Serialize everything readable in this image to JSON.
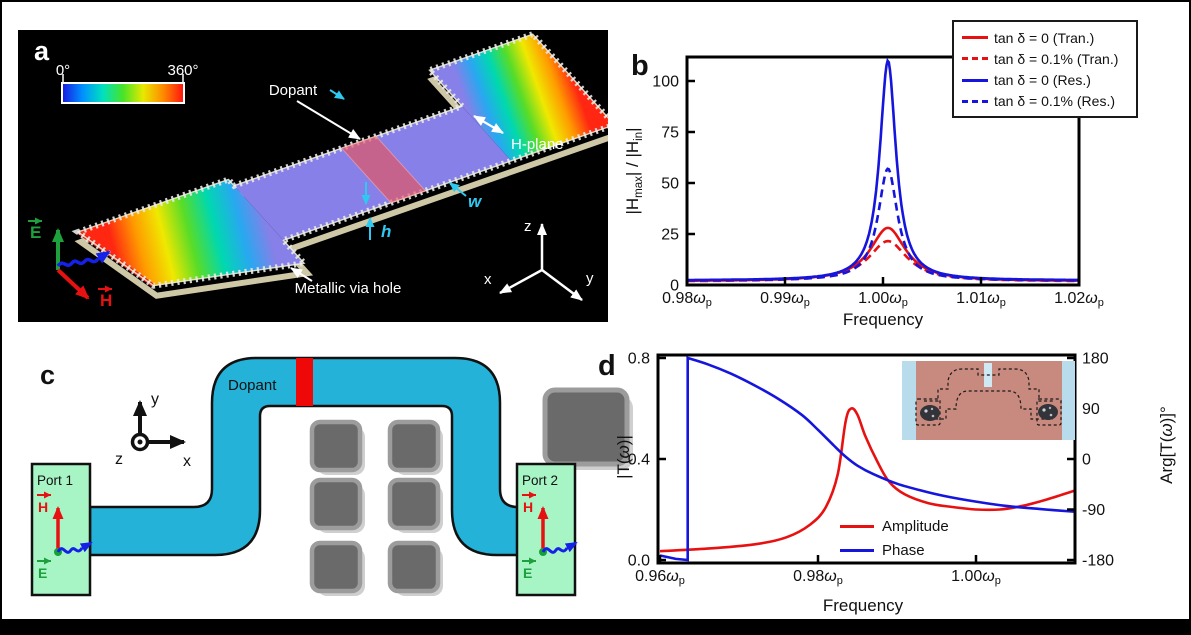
{
  "figure": {
    "panel_a": {
      "label": "a",
      "colorbar": {
        "min_label": "0°",
        "max_label": "360°",
        "colors": [
          "#1818e0",
          "#0090ff",
          "#00e0c0",
          "#48e428",
          "#e8e800",
          "#ff8800",
          "#ff1010"
        ]
      },
      "phase_colors": [
        "#ff2612",
        "#ff9a00",
        "#f0e800",
        "#58dc28",
        "#00d8b0",
        "#28a8f0",
        "#8680e8"
      ],
      "field_blue": "#8680e8",
      "dopant_overlay": "rgba(242,80,80,0.6)",
      "dopant_label": "Dopant",
      "h_plane_label": "H-plane",
      "via_label": "Metallic via hole",
      "w_label": "w",
      "h_label": "h",
      "e_label": "E",
      "h_vec_label": "H",
      "axis_x": "x",
      "axis_y": "y",
      "axis_z": "z"
    },
    "panel_b": {
      "label": "b",
      "legend": [
        {
          "label": "tan δ = 0 (Tran.)",
          "color": "#e81111",
          "dashed": false
        },
        {
          "label": "tan δ = 0.1% (Tran.)",
          "color": "#e81111",
          "dashed": true
        },
        {
          "label": "tan δ = 0 (Res.)",
          "color": "#1515dd",
          "dashed": false
        },
        {
          "label": "tan δ = 0.1% (Res.)",
          "color": "#1515dd",
          "dashed": true
        }
      ]
    },
    "panel_c": {
      "label": "c",
      "dopant_label": "Dopant",
      "port1_label": "Port 1",
      "port2_label": "Port 2",
      "axis_x": "x",
      "axis_y": "y",
      "axis_z": "z",
      "e_label": "E",
      "h_label": "H",
      "waveguide_color": "#25b2d8",
      "port_color": "#a7f4c5",
      "dopant_color": "#ee0808"
    },
    "panel_d": {
      "label": "d",
      "legend": [
        {
          "label": "Amplitude",
          "color": "#e81111",
          "dashed": false
        },
        {
          "label": "Phase",
          "color": "#1515dd",
          "dashed": false
        }
      ]
    }
  },
  "chart_data": [
    {
      "panel": "b",
      "type": "line",
      "xlabel": "Frequency",
      "ylabel_parts": [
        {
          "t": "|H"
        },
        {
          "t": "max",
          "sub": true
        },
        {
          "t": "| / |H"
        },
        {
          "t": "in",
          "sub": true
        },
        {
          "t": "|"
        }
      ],
      "xlim": [
        0.98,
        1.02
      ],
      "ylim": [
        0,
        110
      ],
      "x_ticks": [
        0.98,
        0.99,
        1.0,
        1.01,
        1.02
      ],
      "x_tick_labels": [
        "0.98",
        "0.99",
        "1.00",
        "1.01",
        "1.02"
      ],
      "x_tick_suffix": {
        "symbol": "ω",
        "sub": "p"
      },
      "y_ticks": [
        0,
        25,
        50,
        75,
        100
      ],
      "y_tick_labels": [
        "0",
        "25",
        "50",
        "75",
        "100"
      ],
      "resonance_center": 1.0005,
      "legend_position": "top-right",
      "series": [
        {
          "name": "tan δ = 0 (Tran.)",
          "color": "#e81111",
          "dashed": false,
          "shape": "lorentzian",
          "center": 1.0005,
          "peak": 28,
          "hwhm": 0.0022,
          "base": 1.8
        },
        {
          "name": "tan δ = 0.1% (Tran.)",
          "color": "#e81111",
          "dashed": true,
          "shape": "lorentzian",
          "center": 1.0005,
          "peak": 21.5,
          "hwhm": 0.0024,
          "base": 1.7
        },
        {
          "name": "tan δ = 0 (Res.)",
          "color": "#1515dd",
          "dashed": false,
          "shape": "lorentzian",
          "center": 1.0005,
          "peak": 110,
          "hwhm": 0.001,
          "base": 2.2
        },
        {
          "name": "tan δ = 0.1% (Res.)",
          "color": "#1515dd",
          "dashed": true,
          "shape": "lorentzian",
          "center": 1.0005,
          "peak": 57,
          "hwhm": 0.0012,
          "base": 2.1
        }
      ]
    },
    {
      "panel": "d",
      "type": "line",
      "xlabel": "Frequency",
      "ylabel_left_parts": [
        {
          "t": "|T("
        },
        {
          "t": "ω",
          "i": true
        },
        {
          "t": ")|"
        }
      ],
      "ylabel_right_parts": [
        {
          "t": "Arg[T("
        },
        {
          "t": "ω",
          "i": true
        },
        {
          "t": ")]°"
        }
      ],
      "xlim": [
        0.96,
        1.0125
      ],
      "ylim_left": [
        0,
        0.8
      ],
      "ylim_right": [
        -180,
        180
      ],
      "x_ticks": [
        0.96,
        0.98,
        1.0
      ],
      "x_tick_labels": [
        "0.96",
        "0.98",
        "1.00"
      ],
      "x_tick_suffix": {
        "symbol": "ω",
        "sub": "p"
      },
      "y_ticks_left": [
        0,
        0.4,
        0.8
      ],
      "y_tick_labels_left": [
        "0.0",
        "0.4",
        "0.8"
      ],
      "y_ticks_right": [
        180,
        90,
        0,
        -90,
        -180
      ],
      "y_tick_labels_right": [
        "180",
        "90",
        "0",
        "-90",
        "-180"
      ],
      "series": [
        {
          "name": "Amplitude",
          "axis": "left",
          "color": "#e81111",
          "points": [
            [
              0.96,
              0.035
            ],
            [
              0.966,
              0.045
            ],
            [
              0.972,
              0.062
            ],
            [
              0.976,
              0.09
            ],
            [
              0.979,
              0.14
            ],
            [
              0.981,
              0.21
            ],
            [
              0.9825,
              0.34
            ],
            [
              0.9835,
              0.55
            ],
            [
              0.9842,
              0.6
            ],
            [
              0.985,
              0.575
            ],
            [
              0.986,
              0.49
            ],
            [
              0.9875,
              0.39
            ],
            [
              0.989,
              0.31
            ],
            [
              0.991,
              0.26
            ],
            [
              0.994,
              0.225
            ],
            [
              0.997,
              0.21
            ],
            [
              1.0,
              0.2
            ],
            [
              1.003,
              0.2
            ],
            [
              1.006,
              0.215
            ],
            [
              1.009,
              0.24
            ],
            [
              1.0125,
              0.275
            ]
          ]
        },
        {
          "name": "Phase",
          "axis": "right",
          "color": "#1515dd",
          "phase_jump_x": 0.9635,
          "pre_points": [
            [
              0.96,
              -172
            ],
            [
              0.962,
              -178
            ],
            [
              0.9635,
              -180
            ]
          ],
          "points": [
            [
              0.9635,
              180
            ],
            [
              0.966,
              169
            ],
            [
              0.969,
              152
            ],
            [
              0.972,
              131
            ],
            [
              0.975,
              107
            ],
            [
              0.978,
              78
            ],
            [
              0.98,
              52
            ],
            [
              0.982,
              24
            ],
            [
              0.9835,
              4
            ],
            [
              0.985,
              -12
            ],
            [
              0.987,
              -27
            ],
            [
              0.99,
              -44
            ],
            [
              0.993,
              -56
            ],
            [
              0.996,
              -66
            ],
            [
              1.0,
              -76
            ],
            [
              1.004,
              -84
            ],
            [
              1.008,
              -89
            ],
            [
              1.0125,
              -94
            ]
          ]
        }
      ]
    }
  ]
}
